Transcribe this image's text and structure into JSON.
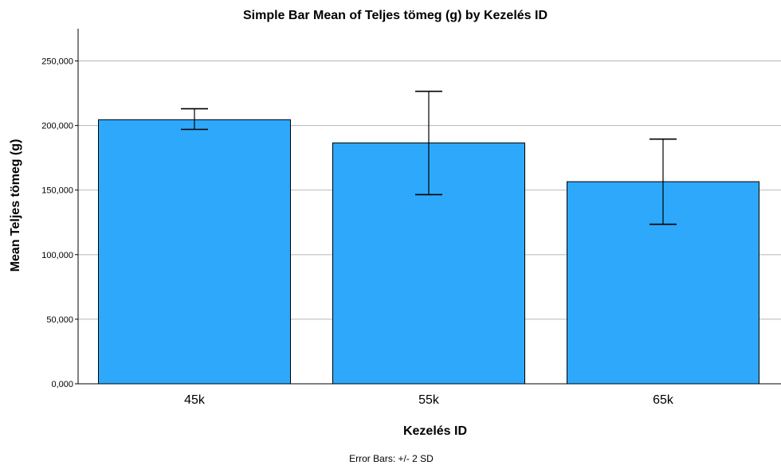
{
  "chart_data": {
    "type": "bar",
    "title": "Simple Bar Mean of Teljes tömeg (g) by Kezelés ID",
    "xlabel": "Kezelés ID",
    "ylabel": "Mean Teljes tömeg (g)",
    "footnote": "Error Bars: +/- 2 SD",
    "categories": [
      "45k",
      "55k",
      "65k"
    ],
    "values": [
      204.5,
      186.5,
      156.5
    ],
    "error_low": [
      197.0,
      146.5,
      123.5
    ],
    "error_high": [
      213.0,
      226.5,
      189.5
    ],
    "ylim": [
      0,
      275
    ],
    "yticks": [
      0,
      50,
      100,
      150,
      200,
      250
    ],
    "ytick_labels": [
      "0,000",
      "50,000",
      "100,000",
      "150,000",
      "200,000",
      "250,000"
    ],
    "grid": true,
    "bar_color": "#2ea8fb"
  }
}
